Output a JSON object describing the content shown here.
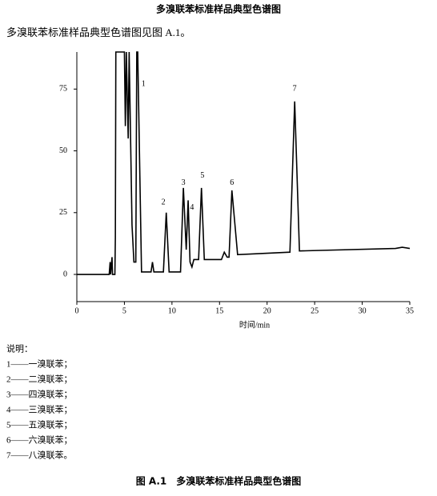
{
  "header": {
    "title": "多溴联苯标准样品典型色谱图",
    "intro": "多溴联苯标准样品典型色谱图见图 A.1。"
  },
  "chart_data": {
    "type": "line",
    "xlabel": "时间/min",
    "xlim": [
      0,
      35
    ],
    "ylim": [
      -11,
      90
    ],
    "xticks": [
      0,
      5,
      10,
      15,
      20,
      25,
      30,
      35
    ],
    "yticks": [
      0,
      25,
      50,
      75
    ],
    "series": [
      {
        "color": "#000000",
        "x": [
          0,
          3.4,
          3.5,
          3.55,
          3.7,
          3.75,
          4.0,
          4.05,
          4.1,
          5.0,
          5.1,
          5.2,
          5.4,
          5.5,
          5.8,
          6.0,
          6.2,
          6.3,
          6.4,
          6.8,
          7.8,
          7.95,
          8.1,
          9.1,
          9.4,
          9.7,
          10.9,
          11.2,
          11.5,
          11.7,
          11.9,
          12.1,
          12.3,
          12.8,
          13.1,
          13.4,
          15.2,
          15.5,
          15.8,
          16.0,
          16.3,
          16.9,
          22.4,
          22.9,
          23.4,
          33.5,
          34.2,
          35
        ],
        "values": [
          0,
          0,
          5,
          0,
          7,
          0,
          0,
          15,
          90,
          90,
          60,
          90,
          55,
          90,
          20,
          5,
          5,
          90,
          90,
          1,
          1,
          5,
          1,
          1,
          25,
          1,
          1,
          35,
          10,
          30,
          5,
          3,
          6,
          6,
          35,
          6,
          6,
          9,
          7,
          7,
          34,
          8,
          9,
          70,
          9.5,
          10.5,
          11,
          10.5
        ]
      }
    ],
    "annotations": [
      {
        "text": "1",
        "x": 7.0,
        "y": 77
      },
      {
        "text": "2",
        "x": 9.1,
        "y": 29
      },
      {
        "text": "3",
        "x": 11.2,
        "y": 37
      },
      {
        "text": "4",
        "x": 12.1,
        "y": 27
      },
      {
        "text": "5",
        "x": 13.2,
        "y": 40
      },
      {
        "text": "6",
        "x": 16.3,
        "y": 37
      },
      {
        "text": "7",
        "x": 22.9,
        "y": 75
      }
    ]
  },
  "notes": {
    "heading": "说明：",
    "items": [
      "1——一溴联苯；",
      "2——二溴联苯；",
      "3——四溴联苯；",
      "4——三溴联苯；",
      "5——五溴联苯；",
      "6——六溴联苯；",
      "7——八溴联苯。"
    ]
  },
  "caption": "图 A.1　多溴联苯标准样品典型色谱图"
}
